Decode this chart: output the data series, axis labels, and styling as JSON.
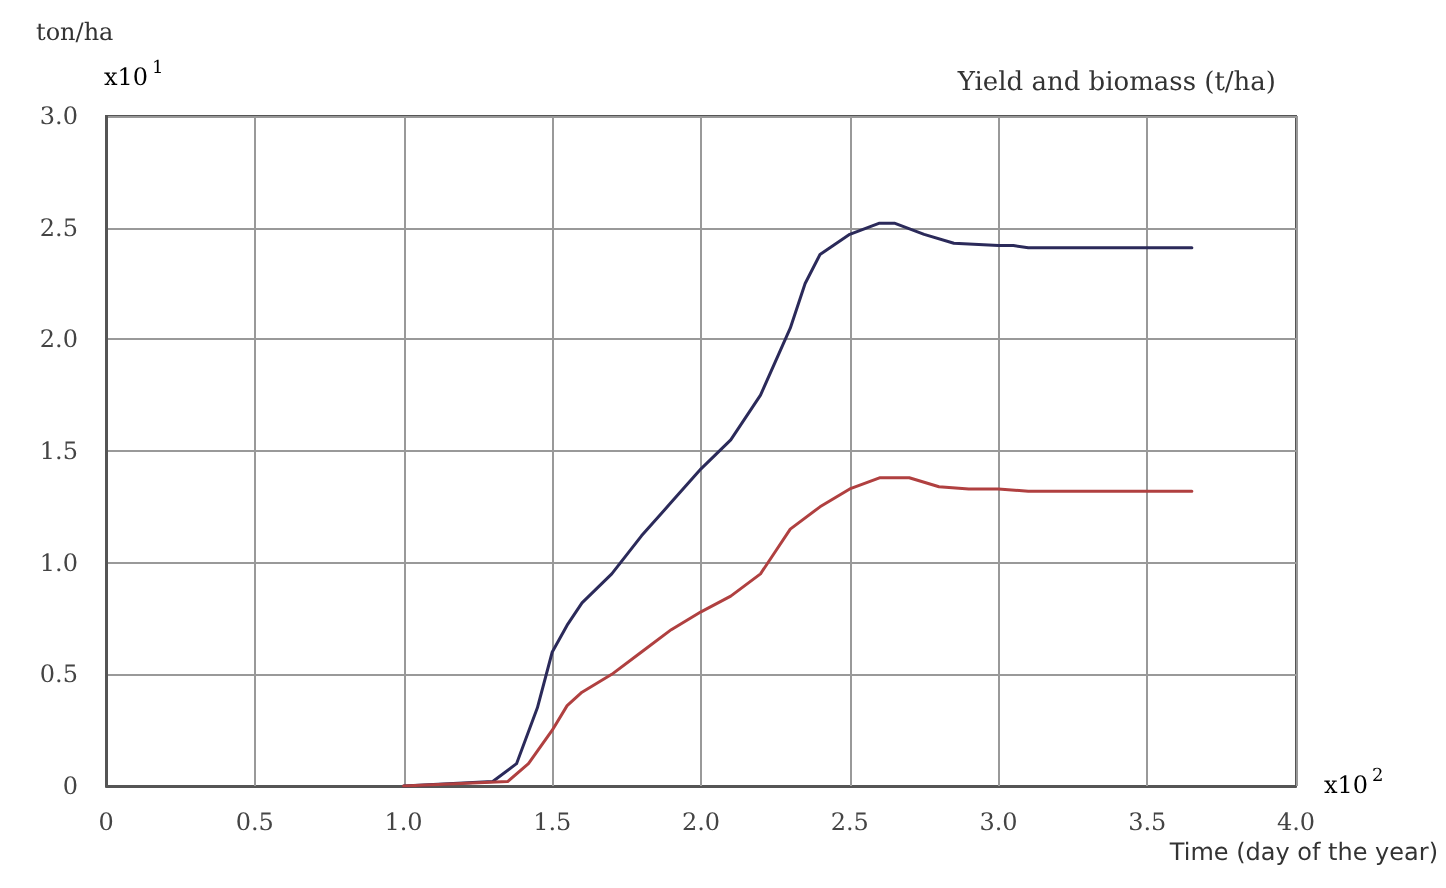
{
  "chart_data": {
    "type": "line",
    "title": "Yield and biomass (t/ha)",
    "xlabel": "Time (day of the year)",
    "ylabel": "ton/ha",
    "annotations": [
      "x10$^{1}$",
      "x10$^{2}$"
    ],
    "xlim": [
      0,
      4
    ],
    "xticks": [
      0,
      {
        "value": 0.5,
        "label": "0.5"
      },
      {
        "value": 1,
        "label": "1.0"
      },
      {
        "value": 1.5,
        "label": "1.5"
      },
      {
        "value": 2,
        "label": "2.0"
      },
      {
        "value": 2.5,
        "label": "2.5"
      },
      {
        "value": 3,
        "label": "3.0"
      },
      {
        "value": 3.5,
        "label": "3.5"
      },
      {
        "value": 4,
        "label": "4.0"
      }
    ],
    "ylim": [
      0,
      3
    ],
    "yticks": [
      0,
      {
        "value": 0.5,
        "label": "0.5"
      },
      {
        "value": 1,
        "label": "1.0"
      },
      {
        "value": 1.5,
        "label": "1.5"
      },
      {
        "value": 2,
        "label": "2.0"
      },
      {
        "value": 2.5,
        "label": "2.5"
      },
      {
        "value": 3,
        "label": "3.0"
      }
    ],
    "grid": true,
    "marker": "none",
    "line_style": "solid",
    "series": [
      {
        "color": "#2b2a5a",
        "x": [
          1.0,
          1.3,
          1.38,
          1.45,
          1.5,
          1.55,
          1.6,
          1.7,
          1.8,
          1.9,
          2.0,
          2.1,
          2.2,
          2.3,
          2.35,
          2.4,
          2.5,
          2.6,
          2.65,
          2.75,
          2.85,
          3.0,
          3.05,
          3.1,
          3.65
        ],
        "values": [
          0,
          0.02,
          0.1,
          0.35,
          0.6,
          0.72,
          0.82,
          0.95,
          1.12,
          1.27,
          1.42,
          1.55,
          1.75,
          2.05,
          2.25,
          2.38,
          2.47,
          2.52,
          2.52,
          2.47,
          2.43,
          2.42,
          2.42,
          2.41,
          2.41
        ]
      },
      {
        "color": "#b04040",
        "x": [
          1.0,
          1.35,
          1.42,
          1.5,
          1.55,
          1.6,
          1.7,
          1.8,
          1.9,
          2.0,
          2.1,
          2.2,
          2.25,
          2.3,
          2.4,
          2.5,
          2.6,
          2.7,
          2.8,
          2.9,
          3.0,
          3.1,
          3.65
        ],
        "values": [
          0,
          0.02,
          0.1,
          0.25,
          0.36,
          0.42,
          0.5,
          0.6,
          0.7,
          0.78,
          0.85,
          0.95,
          1.05,
          1.15,
          1.25,
          1.33,
          1.38,
          1.38,
          1.34,
          1.33,
          1.33,
          1.32,
          1.32
        ]
      }
    ]
  }
}
